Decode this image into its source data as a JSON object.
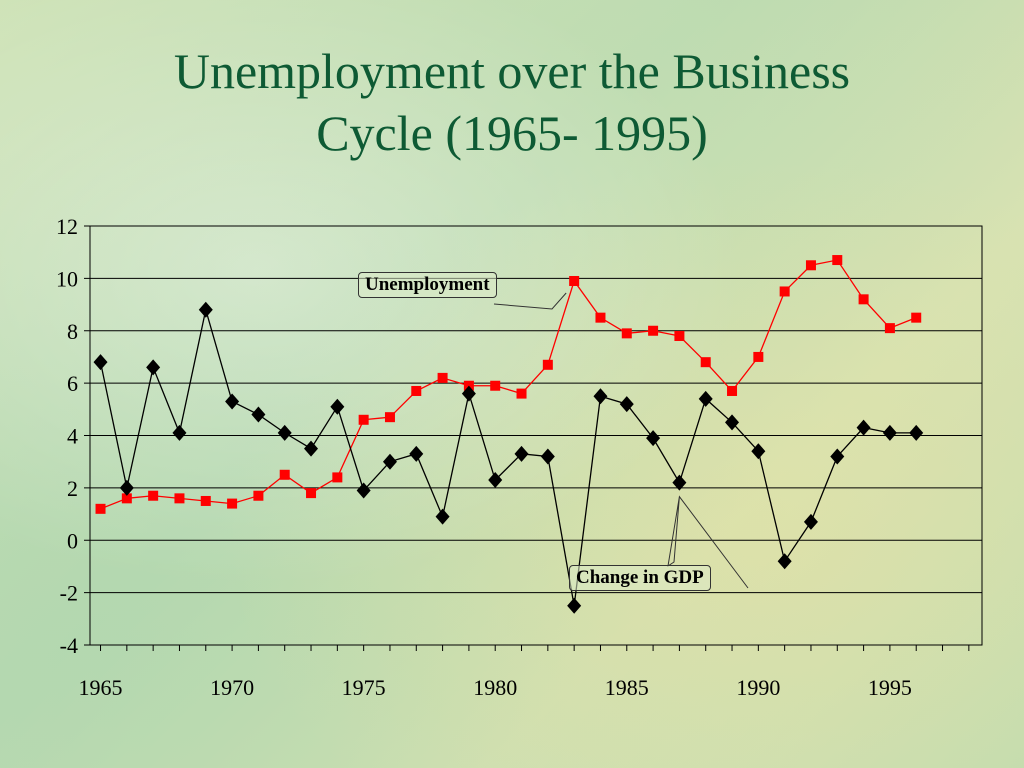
{
  "slide": {
    "title_line1": "Unemployment over the Business",
    "title_line2": "Cycle (1965- 1995)"
  },
  "chart_data": {
    "type": "line",
    "x": [
      1965,
      1966,
      1967,
      1968,
      1969,
      1970,
      1971,
      1972,
      1973,
      1974,
      1975,
      1976,
      1977,
      1978,
      1979,
      1980,
      1981,
      1982,
      1983,
      1984,
      1985,
      1986,
      1987,
      1988,
      1989,
      1990,
      1991,
      1992,
      1993,
      1994,
      1995,
      1996
    ],
    "series": [
      {
        "name": "Unemployment",
        "color": "#ff0000",
        "marker": "square",
        "values": [
          1.2,
          1.6,
          1.7,
          1.6,
          1.5,
          1.4,
          1.7,
          2.5,
          1.8,
          2.4,
          4.6,
          4.7,
          5.7,
          6.2,
          5.9,
          5.9,
          5.6,
          6.7,
          9.9,
          8.5,
          7.9,
          8.0,
          7.8,
          6.8,
          5.7,
          7.0,
          9.5,
          10.5,
          10.7,
          9.2,
          8.1,
          8.5
        ]
      },
      {
        "name": "Change in GDP",
        "color": "#000000",
        "marker": "diamond",
        "values": [
          6.8,
          2.0,
          6.6,
          4.1,
          8.8,
          5.3,
          4.8,
          4.1,
          3.5,
          5.1,
          1.9,
          3.0,
          3.3,
          0.9,
          5.6,
          2.3,
          3.3,
          3.2,
          -2.5,
          5.5,
          5.2,
          3.9,
          2.2,
          5.4,
          4.5,
          3.4,
          -0.8,
          0.7,
          3.2,
          4.3,
          4.1,
          4.1
        ]
      }
    ],
    "ylim": [
      -4,
      12
    ],
    "yticks": [
      -4,
      -2,
      0,
      2,
      4,
      6,
      8,
      10,
      12
    ],
    "xlim": [
      1964.6,
      1998.5
    ],
    "xtick_labels": [
      1965,
      1970,
      1975,
      1980,
      1985,
      1990,
      1995
    ],
    "grid": true,
    "annotations": [
      {
        "text": "Unemployment",
        "series": "Unemployment",
        "x": 1983
      },
      {
        "text": "Change in GDP",
        "series": "Change in GDP",
        "x": 1987
      }
    ]
  }
}
